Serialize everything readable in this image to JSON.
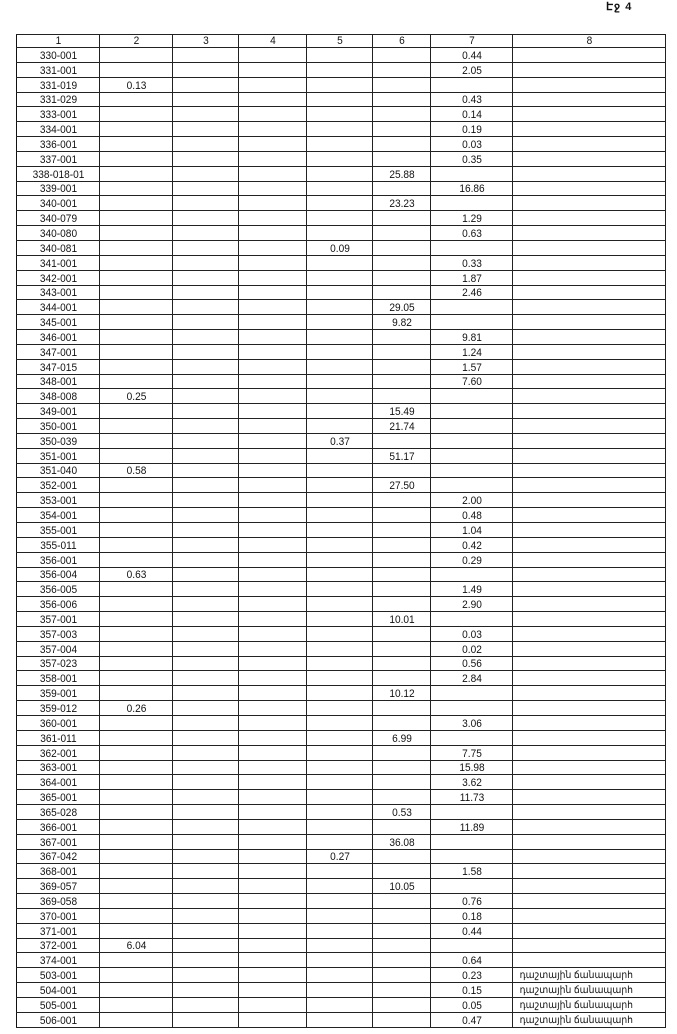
{
  "page_label": "Էջ 4",
  "table": {
    "headers": [
      "1",
      "2",
      "3",
      "4",
      "5",
      "6",
      "7",
      "8"
    ],
    "rows": [
      [
        "330-001",
        "",
        "",
        "",
        "",
        "",
        "0.44",
        ""
      ],
      [
        "331-001",
        "",
        "",
        "",
        "",
        "",
        "2.05",
        ""
      ],
      [
        "331-019",
        "0.13",
        "",
        "",
        "",
        "",
        "",
        ""
      ],
      [
        "331-029",
        "",
        "",
        "",
        "",
        "",
        "0.43",
        ""
      ],
      [
        "333-001",
        "",
        "",
        "",
        "",
        "",
        "0.14",
        ""
      ],
      [
        "334-001",
        "",
        "",
        "",
        "",
        "",
        "0.19",
        ""
      ],
      [
        "336-001",
        "",
        "",
        "",
        "",
        "",
        "0.03",
        ""
      ],
      [
        "337-001",
        "",
        "",
        "",
        "",
        "",
        "0.35",
        ""
      ],
      [
        "338-018-01",
        "",
        "",
        "",
        "",
        "25.88",
        "",
        ""
      ],
      [
        "339-001",
        "",
        "",
        "",
        "",
        "",
        "16.86",
        ""
      ],
      [
        "340-001",
        "",
        "",
        "",
        "",
        "23.23",
        "",
        ""
      ],
      [
        "340-079",
        "",
        "",
        "",
        "",
        "",
        "1.29",
        ""
      ],
      [
        "340-080",
        "",
        "",
        "",
        "",
        "",
        "0.63",
        ""
      ],
      [
        "340-081",
        "",
        "",
        "",
        "0.09",
        "",
        "",
        ""
      ],
      [
        "341-001",
        "",
        "",
        "",
        "",
        "",
        "0.33",
        ""
      ],
      [
        "342-001",
        "",
        "",
        "",
        "",
        "",
        "1.87",
        ""
      ],
      [
        "343-001",
        "",
        "",
        "",
        "",
        "",
        "2.46",
        ""
      ],
      [
        "344-001",
        "",
        "",
        "",
        "",
        "29.05",
        "",
        ""
      ],
      [
        "345-001",
        "",
        "",
        "",
        "",
        "9.82",
        "",
        ""
      ],
      [
        "346-001",
        "",
        "",
        "",
        "",
        "",
        "9.81",
        ""
      ],
      [
        "347-001",
        "",
        "",
        "",
        "",
        "",
        "1.24",
        ""
      ],
      [
        "347-015",
        "",
        "",
        "",
        "",
        "",
        "1.57",
        ""
      ],
      [
        "348-001",
        "",
        "",
        "",
        "",
        "",
        "7.60",
        ""
      ],
      [
        "348-008",
        "0.25",
        "",
        "",
        "",
        "",
        "",
        ""
      ],
      [
        "349-001",
        "",
        "",
        "",
        "",
        "15.49",
        "",
        ""
      ],
      [
        "350-001",
        "",
        "",
        "",
        "",
        "21.74",
        "",
        ""
      ],
      [
        "350-039",
        "",
        "",
        "",
        "0.37",
        "",
        "",
        ""
      ],
      [
        "351-001",
        "",
        "",
        "",
        "",
        "51.17",
        "",
        ""
      ],
      [
        "351-040",
        "0.58",
        "",
        "",
        "",
        "",
        "",
        ""
      ],
      [
        "352-001",
        "",
        "",
        "",
        "",
        "27.50",
        "",
        ""
      ],
      [
        "353-001",
        "",
        "",
        "",
        "",
        "",
        "2.00",
        ""
      ],
      [
        "354-001",
        "",
        "",
        "",
        "",
        "",
        "0.48",
        ""
      ],
      [
        "355-001",
        "",
        "",
        "",
        "",
        "",
        "1.04",
        ""
      ],
      [
        "355-011",
        "",
        "",
        "",
        "",
        "",
        "0.42",
        ""
      ],
      [
        "356-001",
        "",
        "",
        "",
        "",
        "",
        "0.29",
        ""
      ],
      [
        "356-004",
        "0.63",
        "",
        "",
        "",
        "",
        "",
        ""
      ],
      [
        "356-005",
        "",
        "",
        "",
        "",
        "",
        "1.49",
        ""
      ],
      [
        "356-006",
        "",
        "",
        "",
        "",
        "",
        "2.90",
        ""
      ],
      [
        "357-001",
        "",
        "",
        "",
        "",
        "10.01",
        "",
        ""
      ],
      [
        "357-003",
        "",
        "",
        "",
        "",
        "",
        "0.03",
        ""
      ],
      [
        "357-004",
        "",
        "",
        "",
        "",
        "",
        "0.02",
        ""
      ],
      [
        "357-023",
        "",
        "",
        "",
        "",
        "",
        "0.56",
        ""
      ],
      [
        "358-001",
        "",
        "",
        "",
        "",
        "",
        "2.84",
        ""
      ],
      [
        "359-001",
        "",
        "",
        "",
        "",
        "10.12",
        "",
        ""
      ],
      [
        "359-012",
        "0.26",
        "",
        "",
        "",
        "",
        "",
        ""
      ],
      [
        "360-001",
        "",
        "",
        "",
        "",
        "",
        "3.06",
        ""
      ],
      [
        "361-011",
        "",
        "",
        "",
        "",
        "6.99",
        "",
        ""
      ],
      [
        "362-001",
        "",
        "",
        "",
        "",
        "",
        "7.75",
        ""
      ],
      [
        "363-001",
        "",
        "",
        "",
        "",
        "",
        "15.98",
        ""
      ],
      [
        "364-001",
        "",
        "",
        "",
        "",
        "",
        "3.62",
        ""
      ],
      [
        "365-001",
        "",
        "",
        "",
        "",
        "",
        "11.73",
        ""
      ],
      [
        "365-028",
        "",
        "",
        "",
        "",
        "0.53",
        "",
        ""
      ],
      [
        "366-001",
        "",
        "",
        "",
        "",
        "",
        "11.89",
        ""
      ],
      [
        "367-001",
        "",
        "",
        "",
        "",
        "36.08",
        "",
        ""
      ],
      [
        "367-042",
        "",
        "",
        "",
        "0.27",
        "",
        "",
        ""
      ],
      [
        "368-001",
        "",
        "",
        "",
        "",
        "",
        "1.58",
        ""
      ],
      [
        "369-057",
        "",
        "",
        "",
        "",
        "10.05",
        "",
        ""
      ],
      [
        "369-058",
        "",
        "",
        "",
        "",
        "",
        "0.76",
        ""
      ],
      [
        "370-001",
        "",
        "",
        "",
        "",
        "",
        "0.18",
        ""
      ],
      [
        "371-001",
        "",
        "",
        "",
        "",
        "",
        "0.44",
        ""
      ],
      [
        "372-001",
        "6.04",
        "",
        "",
        "",
        "",
        "",
        ""
      ],
      [
        "374-001",
        "",
        "",
        "",
        "",
        "",
        "0.64",
        ""
      ],
      [
        "503-001",
        "",
        "",
        "",
        "",
        "",
        "0.23",
        "դաշտային ճանապարհ"
      ],
      [
        "504-001",
        "",
        "",
        "",
        "",
        "",
        "0.15",
        "դաշտային ճանապարհ"
      ],
      [
        "505-001",
        "",
        "",
        "",
        "",
        "",
        "0.05",
        "դաշտային ճանապարհ"
      ],
      [
        "506-001",
        "",
        "",
        "",
        "",
        "",
        "0.47",
        "դաշտային ճանապարհ"
      ]
    ]
  }
}
